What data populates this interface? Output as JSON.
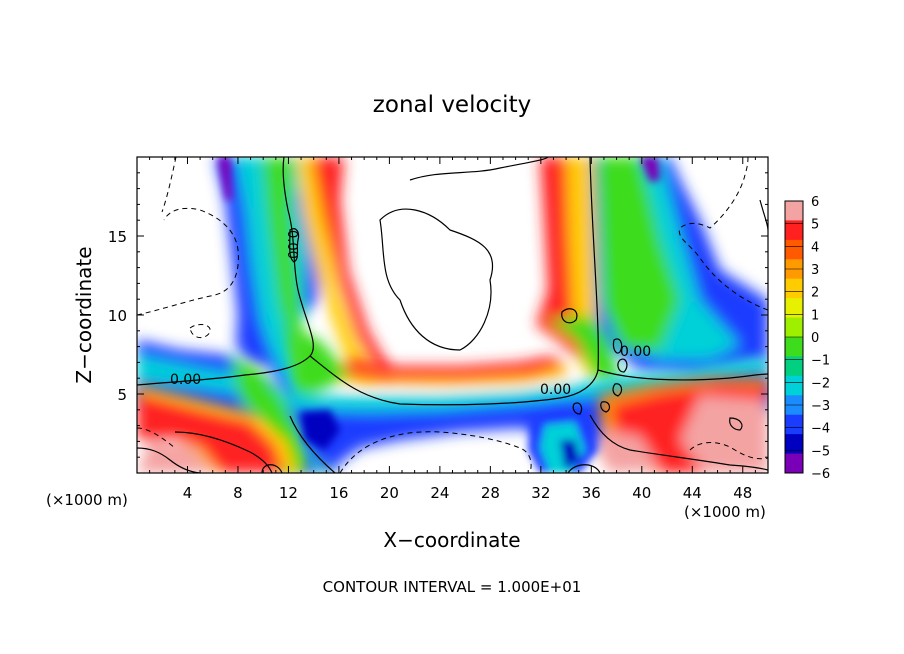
{
  "chart_data": {
    "type": "heatmap",
    "title": "zonal velocity",
    "xlabel": "X−coordinate",
    "ylabel": "Z−coordinate",
    "x_unit_left": "(×1000 m)",
    "x_unit_right": "(×1000 m)",
    "footer": "CONTOUR INTERVAL = 1.000E+01",
    "xlim": [
      0,
      50
    ],
    "ylim": [
      0,
      20
    ],
    "x_ticks": [
      4,
      8,
      12,
      16,
      20,
      24,
      28,
      32,
      36,
      40,
      44,
      48
    ],
    "x_tick_labels": [
      "4",
      "8",
      "12",
      "16",
      "20",
      "24",
      "28",
      "32",
      "36",
      "40",
      "44",
      "48"
    ],
    "y_ticks": [
      5,
      10,
      15
    ],
    "y_tick_labels": [
      "5",
      "10",
      "15"
    ],
    "colorbar": {
      "min": -6,
      "max": 6,
      "tick_values": [
        6,
        5,
        4,
        3,
        2,
        1,
        0,
        -1,
        -2,
        -3,
        -4,
        -5,
        -6
      ],
      "tick_labels": [
        "6",
        "5",
        "4",
        "3",
        "2",
        "1",
        "0",
        "−1",
        "−2",
        "−3",
        "−4",
        "−5",
        "−6"
      ],
      "colors": [
        "#f4a3a3",
        "#ff2020",
        "#ff5a00",
        "#ff9a00",
        "#ffcc00",
        "#e6f000",
        "#9ef000",
        "#3ddc1c",
        "#00d080",
        "#00d0d8",
        "#1a8cff",
        "#1a3cff",
        "#0000c0",
        "#7a00b8"
      ]
    },
    "contour_labels": [
      "0.00",
      "0.00",
      "0.00",
      "0.00"
    ]
  }
}
